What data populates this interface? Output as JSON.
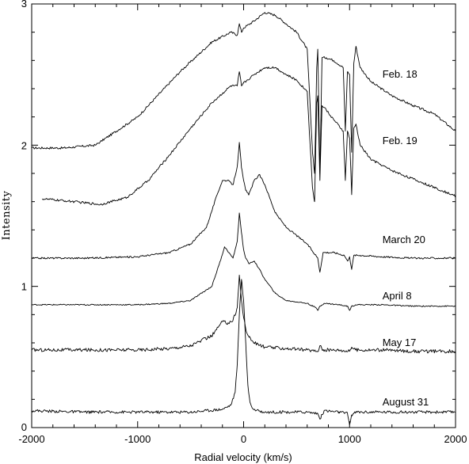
{
  "chart_data": {
    "type": "line",
    "title": "",
    "xlabel": "Radial velocity (km/s)",
    "ylabel": "Intensity",
    "xlim": [
      -2000,
      2000
    ],
    "ylim": [
      0,
      3
    ],
    "xticks": [
      -2000,
      -1000,
      0,
      1000,
      2000
    ],
    "yticks": [
      0,
      1,
      2,
      3
    ],
    "xtick_labels": [
      "-2000",
      "-1000",
      "0",
      "1000",
      "2000"
    ],
    "ytick_labels": [
      "0",
      "1",
      "2",
      "3"
    ],
    "grid": false,
    "legend": "none (labels beside each trace)",
    "line_color": "#000000",
    "series": [
      {
        "name": "Feb. 18",
        "x": [
          -2000,
          -1700,
          -1400,
          -1000,
          -600,
          -300,
          -120,
          -60,
          -40,
          -20,
          0,
          100,
          200,
          300,
          400,
          500,
          600,
          650,
          670,
          690,
          700,
          720,
          740,
          780,
          850,
          940,
          960,
          980,
          1000,
          1020,
          1040,
          1060,
          1100,
          1200,
          1400,
          1600,
          1800,
          2000
        ],
        "y": [
          1.98,
          1.98,
          2.0,
          2.2,
          2.52,
          2.73,
          2.8,
          2.78,
          2.86,
          2.8,
          2.83,
          2.88,
          2.94,
          2.92,
          2.86,
          2.8,
          2.68,
          1.95,
          1.8,
          2.55,
          2.68,
          1.8,
          2.62,
          2.62,
          2.6,
          2.55,
          2.1,
          2.52,
          2.5,
          1.95,
          2.58,
          2.7,
          2.55,
          2.45,
          2.35,
          2.28,
          2.22,
          2.1
        ]
      },
      {
        "name": "Feb. 19",
        "x": [
          -1900,
          -1600,
          -1350,
          -1100,
          -900,
          -700,
          -500,
          -300,
          -120,
          -60,
          -40,
          -20,
          0,
          100,
          200,
          300,
          400,
          500,
          600,
          650,
          670,
          690,
          700,
          720,
          740,
          780,
          850,
          940,
          960,
          980,
          1000,
          1020,
          1040,
          1060,
          1100,
          1200,
          1400,
          1600,
          1800,
          2000
        ],
        "y": [
          1.62,
          1.6,
          1.58,
          1.63,
          1.75,
          1.93,
          2.12,
          2.3,
          2.42,
          2.42,
          2.52,
          2.42,
          2.44,
          2.5,
          2.55,
          2.55,
          2.5,
          2.46,
          2.38,
          1.7,
          1.6,
          2.3,
          2.35,
          1.75,
          2.28,
          2.25,
          2.18,
          2.1,
          1.75,
          2.1,
          2.05,
          1.65,
          2.12,
          2.15,
          2.0,
          1.9,
          1.82,
          1.76,
          1.7,
          1.64
        ]
      },
      {
        "name": "March 20",
        "x": [
          -2000,
          -1500,
          -1000,
          -700,
          -500,
          -350,
          -250,
          -200,
          -150,
          -100,
          -60,
          -40,
          -20,
          0,
          20,
          50,
          100,
          150,
          200,
          300,
          400,
          500,
          600,
          650,
          700,
          720,
          750,
          850,
          950,
          980,
          1000,
          1020,
          1040,
          1100,
          1300,
          1600,
          2000
        ],
        "y": [
          1.2,
          1.2,
          1.21,
          1.24,
          1.3,
          1.42,
          1.65,
          1.75,
          1.75,
          1.72,
          1.85,
          2.02,
          1.84,
          1.75,
          1.68,
          1.65,
          1.75,
          1.79,
          1.72,
          1.52,
          1.42,
          1.36,
          1.3,
          1.25,
          1.2,
          1.1,
          1.24,
          1.24,
          1.22,
          1.18,
          1.21,
          1.12,
          1.22,
          1.22,
          1.21,
          1.2,
          1.2
        ]
      },
      {
        "name": "April 8",
        "x": [
          -2000,
          -1500,
          -1000,
          -700,
          -500,
          -300,
          -220,
          -180,
          -150,
          -100,
          -60,
          -40,
          -20,
          0,
          20,
          50,
          100,
          150,
          200,
          300,
          400,
          600,
          680,
          700,
          720,
          760,
          900,
          980,
          1000,
          1020,
          1060,
          1300,
          1600,
          2000
        ],
        "y": [
          0.87,
          0.87,
          0.87,
          0.88,
          0.9,
          1.0,
          1.18,
          1.28,
          1.25,
          1.2,
          1.32,
          1.52,
          1.38,
          1.26,
          1.2,
          1.16,
          1.18,
          1.12,
          1.05,
          0.95,
          0.9,
          0.88,
          0.85,
          0.83,
          0.86,
          0.88,
          0.87,
          0.86,
          0.83,
          0.86,
          0.87,
          0.87,
          0.86,
          0.86
        ]
      },
      {
        "name": "May 17",
        "x": [
          -2000,
          -1500,
          -1000,
          -700,
          -500,
          -300,
          -200,
          -150,
          -100,
          -60,
          -40,
          -20,
          0,
          20,
          50,
          100,
          200,
          400,
          600,
          700,
          720,
          750,
          900,
          1000,
          1020,
          1060,
          1300,
          1600,
          2000
        ],
        "y": [
          0.55,
          0.55,
          0.55,
          0.56,
          0.58,
          0.65,
          0.75,
          0.74,
          0.76,
          0.85,
          1.08,
          0.9,
          0.78,
          0.7,
          0.64,
          0.6,
          0.57,
          0.56,
          0.55,
          0.54,
          0.58,
          0.55,
          0.55,
          0.54,
          0.57,
          0.55,
          0.55,
          0.54,
          0.54
        ]
      },
      {
        "name": "August 31",
        "x": [
          -2000,
          -1500,
          -1000,
          -500,
          -200,
          -120,
          -80,
          -60,
          -40,
          -20,
          0,
          20,
          40,
          60,
          80,
          120,
          200,
          400,
          600,
          700,
          720,
          760,
          900,
          980,
          1000,
          1020,
          1060,
          1300,
          1600,
          2000
        ],
        "y": [
          0.12,
          0.11,
          0.11,
          0.11,
          0.13,
          0.16,
          0.25,
          0.45,
          0.8,
          1.05,
          0.9,
          0.6,
          0.3,
          0.18,
          0.14,
          0.12,
          0.11,
          0.11,
          0.11,
          0.1,
          0.06,
          0.12,
          0.11,
          0.1,
          0.02,
          0.09,
          0.11,
          0.11,
          0.11,
          0.11
        ]
      }
    ]
  }
}
